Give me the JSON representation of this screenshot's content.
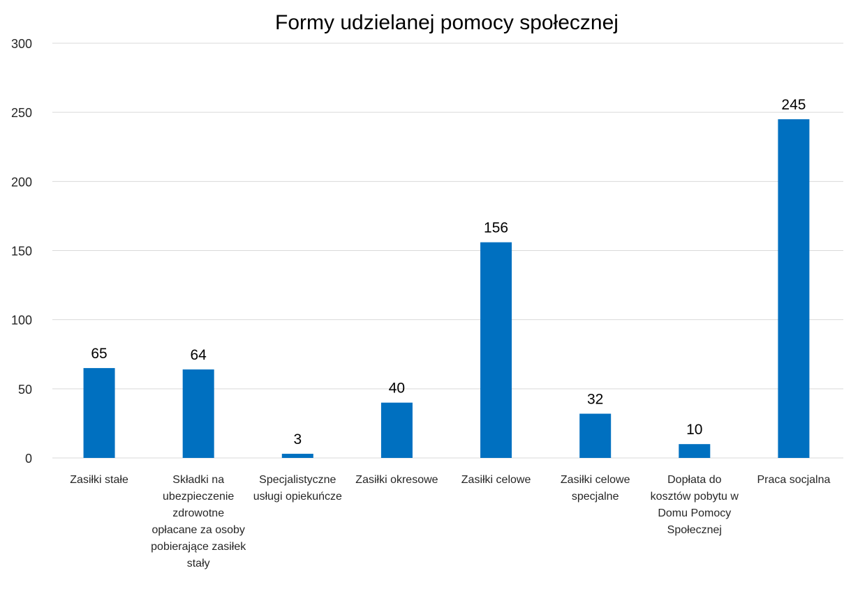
{
  "chart_data": {
    "type": "bar",
    "title": "Formy udzielanej pomocy społecznej",
    "categories": [
      "Zasiłki stałe",
      "Składki na ubezpieczenie zdrowotne opłacane za osoby pobierające zasiłek stały",
      "Specjalistyczne usługi opiekuńcze",
      "Zasiłki okresowe",
      "Zasiłki celowe",
      "Zasiłki celowe specjalne",
      "Dopłata do kosztów pobytu w Domu Pomocy Społecznej",
      "Praca socjalna"
    ],
    "values": [
      65,
      64,
      3,
      40,
      156,
      32,
      10,
      245
    ],
    "color": "#0070c0",
    "ylim": [
      0,
      300
    ],
    "yticks": [
      0,
      50,
      100,
      150,
      200,
      250,
      300
    ],
    "grid": true
  }
}
